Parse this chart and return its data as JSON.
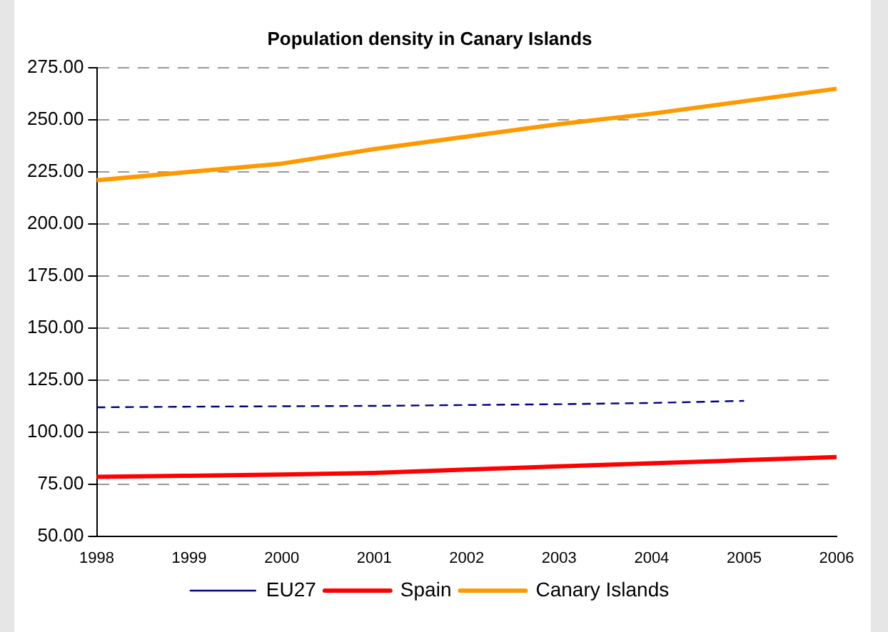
{
  "chart_data": {
    "type": "line",
    "title": "Population density in Canary Islands",
    "categories": [
      "1998",
      "1999",
      "2000",
      "2001",
      "2002",
      "2003",
      "2004",
      "2005",
      "2006"
    ],
    "series": [
      {
        "name": "EU27",
        "color": "#000080",
        "line_style": "dashed",
        "values": [
          111.9,
          112.2,
          112.4,
          112.6,
          113.0,
          113.4,
          114.0,
          115.0,
          null
        ]
      },
      {
        "name": "Spain",
        "color": "#ff0000",
        "values": [
          78.5,
          79.0,
          79.6,
          80.4,
          82.0,
          83.5,
          85.0,
          86.5,
          88.0
        ]
      },
      {
        "name": "Canary Islands",
        "color": "#ff9900",
        "values": [
          221,
          225,
          229,
          236,
          242,
          248,
          253,
          259,
          265
        ]
      }
    ],
    "ylim": [
      50,
      275
    ],
    "yticks": [
      {
        "value": 50,
        "label": "50.00"
      },
      {
        "value": 75,
        "label": "75.00"
      },
      {
        "value": 100,
        "label": "100.00"
      },
      {
        "value": 125,
        "label": "125.00"
      },
      {
        "value": 150,
        "label": "150.00"
      },
      {
        "value": 175,
        "label": "175.00"
      },
      {
        "value": 200,
        "label": "200.00"
      },
      {
        "value": 225,
        "label": "225.00"
      },
      {
        "value": 250,
        "label": "250.00"
      },
      {
        "value": 275,
        "label": "275.00"
      }
    ],
    "grid": "y",
    "legend": "bottom",
    "marker": "none"
  }
}
